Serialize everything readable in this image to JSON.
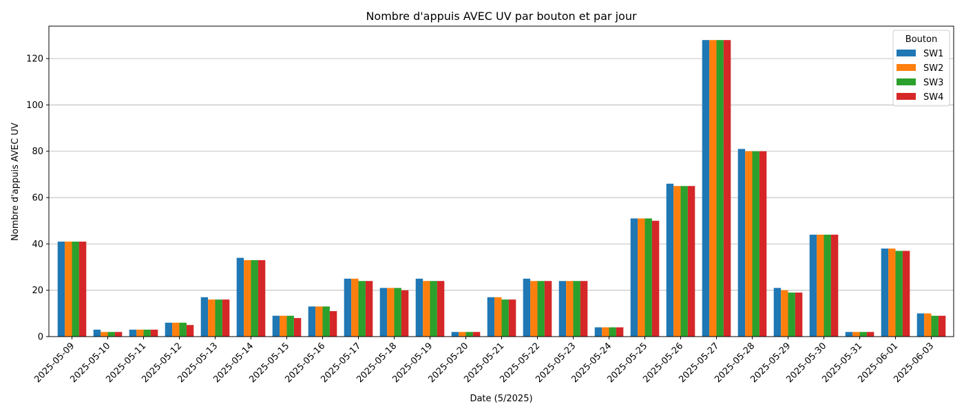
{
  "chart_data": {
    "type": "bar",
    "title": "Nombre d'appuis AVEC UV par bouton et par jour",
    "xlabel": "Date (5/2025)",
    "ylabel": "Nombre d'appuis AVEC UV",
    "ylim": [
      0,
      134
    ],
    "yticks": [
      0,
      20,
      40,
      60,
      80,
      100,
      120
    ],
    "grid": "y",
    "legend": {
      "title": "Bouton",
      "placement": "top-right"
    },
    "categories": [
      "2025-05-09",
      "2025-05-10",
      "2025-05-11",
      "2025-05-12",
      "2025-05-13",
      "2025-05-14",
      "2025-05-15",
      "2025-05-16",
      "2025-05-17",
      "2025-05-18",
      "2025-05-19",
      "2025-05-20",
      "2025-05-21",
      "2025-05-22",
      "2025-05-23",
      "2025-05-24",
      "2025-05-25",
      "2025-05-26",
      "2025-05-27",
      "2025-05-28",
      "2025-05-29",
      "2025-05-30",
      "2025-05-31",
      "2025-06-01",
      "2025-06-03"
    ],
    "series": [
      {
        "name": "SW1",
        "color": "#1f77b4",
        "values": [
          41,
          3,
          3,
          6,
          17,
          34,
          9,
          13,
          25,
          21,
          25,
          2,
          17,
          25,
          24,
          4,
          51,
          66,
          128,
          81,
          21,
          44,
          2,
          38,
          10
        ]
      },
      {
        "name": "SW2",
        "color": "#ff7f0e",
        "values": [
          41,
          2,
          3,
          6,
          16,
          33,
          9,
          13,
          25,
          21,
          24,
          2,
          17,
          24,
          24,
          4,
          51,
          65,
          128,
          80,
          20,
          44,
          2,
          38,
          10
        ]
      },
      {
        "name": "SW3",
        "color": "#2ca02c",
        "values": [
          41,
          2,
          3,
          6,
          16,
          33,
          9,
          13,
          24,
          21,
          24,
          2,
          16,
          24,
          24,
          4,
          51,
          65,
          128,
          80,
          19,
          44,
          2,
          37,
          9
        ]
      },
      {
        "name": "SW4",
        "color": "#d62728",
        "values": [
          41,
          2,
          3,
          5,
          16,
          33,
          8,
          11,
          24,
          20,
          24,
          2,
          16,
          24,
          24,
          4,
          50,
          65,
          128,
          80,
          19,
          44,
          2,
          37,
          9
        ]
      }
    ]
  }
}
